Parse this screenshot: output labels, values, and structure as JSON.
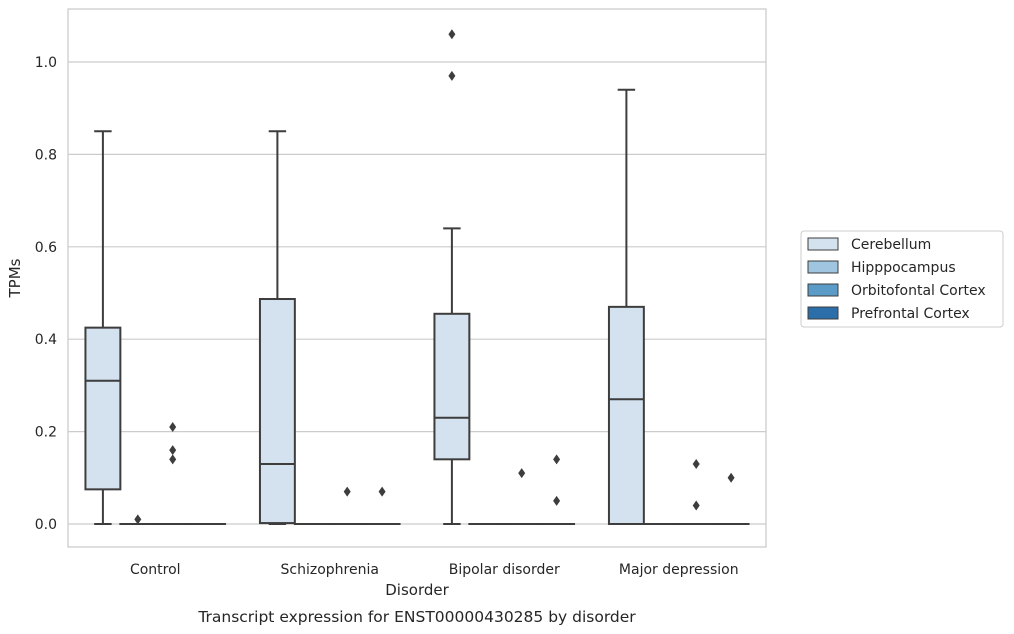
{
  "chart_data": {
    "type": "box",
    "xlabel": "Disorder",
    "ylabel": "TPMs",
    "caption": "Transcript expression for ENST00000430285 by disorder",
    "categories": [
      "Control",
      "Schizophrenia",
      "Bipolar disorder",
      "Major depression"
    ],
    "y_ticks": [
      "0.0",
      "0.2",
      "0.4",
      "0.6",
      "0.8",
      "1.0"
    ],
    "ylim": [
      -0.05,
      1.12
    ],
    "grid": "horizontal",
    "legend_position": "right",
    "series": [
      {
        "name": "Cerebellum",
        "color": "#d4e2f0",
        "boxes": [
          {
            "category": "Control",
            "whisker_low": 0.0,
            "q1": 0.075,
            "median": 0.31,
            "q3": 0.425,
            "whisker_high": 0.85,
            "outliers": []
          },
          {
            "category": "Schizophrenia",
            "whisker_low": 0.0,
            "q1": 0.002,
            "median": 0.13,
            "q3": 0.487,
            "whisker_high": 0.85,
            "outliers": []
          },
          {
            "category": "Bipolar disorder",
            "whisker_low": 0.0,
            "q1": 0.14,
            "median": 0.23,
            "q3": 0.455,
            "whisker_high": 0.64,
            "outliers": [
              0.97,
              1.06
            ]
          },
          {
            "category": "Major depression",
            "whisker_low": 0.0,
            "q1": 0.0,
            "median": 0.27,
            "q3": 0.47,
            "whisker_high": 0.94,
            "outliers": []
          }
        ]
      },
      {
        "name": "Hipppocampus",
        "color": "#9fc5e0",
        "boxes": [
          {
            "category": "Control",
            "whisker_low": 0.0,
            "q1": 0.0,
            "median": 0.0,
            "q3": 0.0,
            "whisker_high": 0.0,
            "outliers": [
              0.01
            ]
          },
          {
            "category": "Schizophrenia",
            "whisker_low": 0.0,
            "q1": 0.0,
            "median": 0.0,
            "q3": 0.0,
            "whisker_high": 0.0,
            "outliers": []
          },
          {
            "category": "Bipolar disorder",
            "whisker_low": 0.0,
            "q1": 0.0,
            "median": 0.0,
            "q3": 0.0,
            "whisker_high": 0.0,
            "outliers": []
          },
          {
            "category": "Major depression",
            "whisker_low": 0.0,
            "q1": 0.0,
            "median": 0.0,
            "q3": 0.0,
            "whisker_high": 0.0,
            "outliers": []
          }
        ]
      },
      {
        "name": "Orbitofontal Cortex",
        "color": "#5b9bc8",
        "boxes": [
          {
            "category": "Control",
            "whisker_low": 0.0,
            "q1": 0.0,
            "median": 0.0,
            "q3": 0.0,
            "whisker_high": 0.0,
            "outliers": [
              0.14,
              0.16,
              0.21
            ]
          },
          {
            "category": "Schizophrenia",
            "whisker_low": 0.0,
            "q1": 0.0,
            "median": 0.0,
            "q3": 0.0,
            "whisker_high": 0.0,
            "outliers": [
              0.07
            ]
          },
          {
            "category": "Bipolar disorder",
            "whisker_low": 0.0,
            "q1": 0.0,
            "median": 0.0,
            "q3": 0.0,
            "whisker_high": 0.0,
            "outliers": [
              0.11
            ]
          },
          {
            "category": "Major depression",
            "whisker_low": 0.0,
            "q1": 0.0,
            "median": 0.0,
            "q3": 0.0,
            "whisker_high": 0.0,
            "outliers": [
              0.04,
              0.13
            ]
          }
        ]
      },
      {
        "name": "Prefrontal Cortex",
        "color": "#2c6ea9",
        "boxes": [
          {
            "category": "Control",
            "whisker_low": 0.0,
            "q1": 0.0,
            "median": 0.0,
            "q3": 0.0,
            "whisker_high": 0.0,
            "outliers": []
          },
          {
            "category": "Schizophrenia",
            "whisker_low": 0.0,
            "q1": 0.0,
            "median": 0.0,
            "q3": 0.0,
            "whisker_high": 0.0,
            "outliers": [
              0.07
            ]
          },
          {
            "category": "Bipolar disorder",
            "whisker_low": 0.0,
            "q1": 0.0,
            "median": 0.0,
            "q3": 0.0,
            "whisker_high": 0.0,
            "outliers": [
              0.14,
              0.05
            ]
          },
          {
            "category": "Major depression",
            "whisker_low": 0.0,
            "q1": 0.0,
            "median": 0.0,
            "q3": 0.0,
            "whisker_high": 0.0,
            "outliers": [
              0.1
            ]
          }
        ]
      }
    ]
  }
}
